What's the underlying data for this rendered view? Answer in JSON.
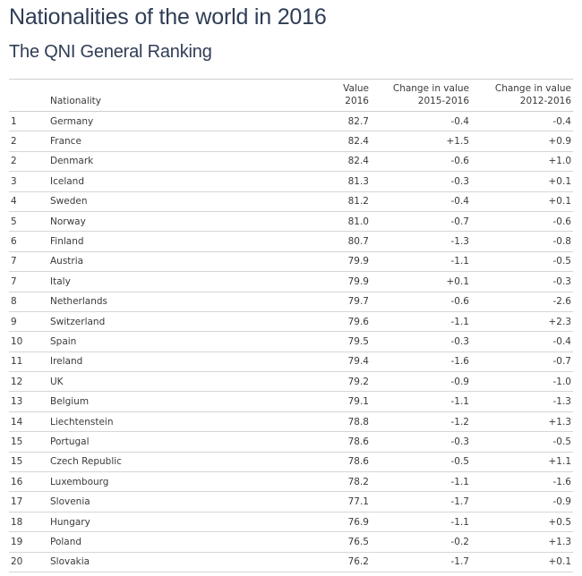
{
  "header": {
    "title": "Nationalities of the world in 2016",
    "subtitle": "The QNI General Ranking"
  },
  "table": {
    "columns": {
      "rank": "",
      "nationality": "Nationality",
      "value_line1": "Value",
      "value_line2": "2016",
      "change1_line1": "Change in value",
      "change1_line2": "2015-2016",
      "change2_line1": "Change in value",
      "change2_line2": "2012-2016"
    }
  },
  "chart_data": {
    "type": "table",
    "title": "Nationalities of the world in 2016",
    "subtitle": "The QNI General Ranking",
    "columns": [
      "",
      "Nationality",
      "Value 2016",
      "Change in value 2015-2016",
      "Change in value 2012-2016"
    ],
    "rows": [
      {
        "rank": "1",
        "nationality": "Germany",
        "value": "82.7",
        "change_2015_2016": "-0.4",
        "change_2012_2016": "-0.4"
      },
      {
        "rank": "2",
        "nationality": "France",
        "value": "82.4",
        "change_2015_2016": "+1.5",
        "change_2012_2016": "+0.9"
      },
      {
        "rank": "2",
        "nationality": "Denmark",
        "value": "82.4",
        "change_2015_2016": "-0.6",
        "change_2012_2016": "+1.0"
      },
      {
        "rank": "3",
        "nationality": "Iceland",
        "value": "81.3",
        "change_2015_2016": "-0.3",
        "change_2012_2016": "+0.1"
      },
      {
        "rank": "4",
        "nationality": "Sweden",
        "value": "81.2",
        "change_2015_2016": "-0.4",
        "change_2012_2016": "+0.1"
      },
      {
        "rank": "5",
        "nationality": "Norway",
        "value": "81.0",
        "change_2015_2016": "-0.7",
        "change_2012_2016": "-0.6"
      },
      {
        "rank": "6",
        "nationality": "Finland",
        "value": "80.7",
        "change_2015_2016": "-1.3",
        "change_2012_2016": "-0.8"
      },
      {
        "rank": "7",
        "nationality": "Austria",
        "value": "79.9",
        "change_2015_2016": "-1.1",
        "change_2012_2016": "-0.5"
      },
      {
        "rank": "7",
        "nationality": "Italy",
        "value": "79.9",
        "change_2015_2016": "+0.1",
        "change_2012_2016": "-0.3"
      },
      {
        "rank": "8",
        "nationality": "Netherlands",
        "value": "79.7",
        "change_2015_2016": "-0.6",
        "change_2012_2016": "-2.6"
      },
      {
        "rank": "9",
        "nationality": "Switzerland",
        "value": "79.6",
        "change_2015_2016": "-1.1",
        "change_2012_2016": "+2.3"
      },
      {
        "rank": "10",
        "nationality": "Spain",
        "value": "79.5",
        "change_2015_2016": "-0.3",
        "change_2012_2016": "-0.4"
      },
      {
        "rank": "11",
        "nationality": "Ireland",
        "value": "79.4",
        "change_2015_2016": "-1.6",
        "change_2012_2016": "-0.7"
      },
      {
        "rank": "12",
        "nationality": "UK",
        "value": "79.2",
        "change_2015_2016": "-0.9",
        "change_2012_2016": "-1.0"
      },
      {
        "rank": "13",
        "nationality": "Belgium",
        "value": "79.1",
        "change_2015_2016": "-1.1",
        "change_2012_2016": "-1.3"
      },
      {
        "rank": "14",
        "nationality": "Liechtenstein",
        "value": "78.8",
        "change_2015_2016": "-1.2",
        "change_2012_2016": "+1.3"
      },
      {
        "rank": "15",
        "nationality": "Portugal",
        "value": "78.6",
        "change_2015_2016": "-0.3",
        "change_2012_2016": "-0.5"
      },
      {
        "rank": "15",
        "nationality": "Czech Republic",
        "value": "78.6",
        "change_2015_2016": "-0.5",
        "change_2012_2016": "+1.1"
      },
      {
        "rank": "16",
        "nationality": "Luxembourg",
        "value": "78.2",
        "change_2015_2016": "-1.1",
        "change_2012_2016": "-1.6"
      },
      {
        "rank": "17",
        "nationality": "Slovenia",
        "value": "77.1",
        "change_2015_2016": "-1.7",
        "change_2012_2016": "-0.9"
      },
      {
        "rank": "18",
        "nationality": "Hungary",
        "value": "76.9",
        "change_2015_2016": "-1.1",
        "change_2012_2016": "+0.5"
      },
      {
        "rank": "19",
        "nationality": "Poland",
        "value": "76.5",
        "change_2015_2016": "-0.2",
        "change_2012_2016": "+1.3"
      },
      {
        "rank": "20",
        "nationality": "Slovakia",
        "value": "76.2",
        "change_2015_2016": "-1.7",
        "change_2012_2016": "+0.1"
      }
    ]
  }
}
